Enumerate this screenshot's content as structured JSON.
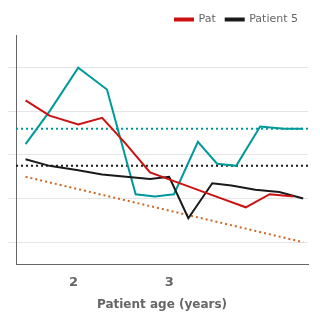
{
  "chart_data": {
    "type": "line",
    "xlabel": "Patient age (years)",
    "xlim": [
      1.4,
      4.45
    ],
    "xticks": [
      2,
      3
    ],
    "ylim": [
      10,
      115
    ],
    "yticks": [
      20,
      40,
      60,
      80,
      100
    ],
    "tick_labels": "x",
    "grid": "y",
    "legend": "upper right",
    "series": [
      {
        "color": "#009999",
        "line_style": "solid",
        "x": [
          1.5,
          1.75,
          2.05,
          2.35,
          2.65,
          2.85,
          3.05,
          3.3,
          3.5,
          3.7,
          3.95,
          4.2,
          4.4
        ],
        "values": [
          65,
          80,
          100,
          90,
          42,
          41,
          42,
          66,
          56,
          55,
          73,
          72,
          72
        ]
      },
      {
        "name": "Patient 5",
        "color": "#1a1a1a",
        "line_style": "solid",
        "x": [
          1.5,
          1.75,
          2.05,
          2.3,
          2.55,
          2.8,
          3.0,
          3.2,
          3.45,
          3.65,
          3.9,
          4.15,
          4.4
        ],
        "values": [
          58,
          55,
          53,
          51,
          50,
          49,
          50,
          31,
          47,
          46,
          44,
          43,
          40
        ]
      },
      {
        "name": "Pat",
        "color": "#cc1111",
        "line_style": "solid",
        "x": [
          1.5,
          1.75,
          2.05,
          2.3,
          2.55,
          2.8,
          3.05,
          3.3,
          3.55,
          3.8,
          4.05,
          4.3
        ],
        "values": [
          85,
          78,
          74,
          77,
          65,
          52,
          48,
          44,
          40,
          36,
          42,
          41
        ]
      },
      {
        "color": "#009999",
        "line_style": "dotted",
        "x": [
          1.4,
          4.45
        ],
        "values": [
          72,
          72
        ]
      },
      {
        "color": "#1a1a1a",
        "line_style": "dotted",
        "x": [
          1.4,
          4.45
        ],
        "values": [
          55,
          55
        ]
      },
      {
        "color": "#cc6622",
        "line_style": "dotted",
        "x": [
          1.5,
          4.4
        ],
        "values": [
          50,
          20
        ]
      }
    ]
  }
}
